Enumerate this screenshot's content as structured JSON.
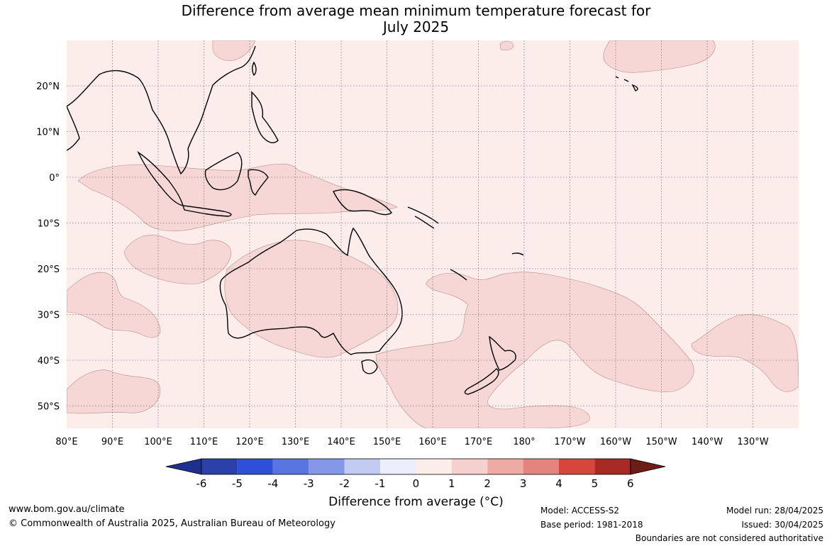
{
  "title_line1": "Difference from average mean minimum temperature forecast for",
  "title_line2": "July 2025",
  "lat_labels": [
    "20°N",
    "10°N",
    "0°",
    "10°S",
    "20°S",
    "30°S",
    "40°S",
    "50°S"
  ],
  "lon_labels": [
    "80°E",
    "90°E",
    "100°E",
    "110°E",
    "120°E",
    "130°E",
    "140°E",
    "150°E",
    "160°E",
    "170°E",
    "180°",
    "170°W",
    "160°W",
    "150°W",
    "140°W",
    "130°W"
  ],
  "colorbar": {
    "title": "Difference from average (°C)",
    "ticks": [
      "-6",
      "-5",
      "-4",
      "-3",
      "-2",
      "-1",
      "0",
      "1",
      "2",
      "3",
      "4",
      "5",
      "6"
    ],
    "colors": [
      "#1e2f8f",
      "#2b3fa8",
      "#2f4fd9",
      "#5a74e0",
      "#8497e8",
      "#c3cbf3",
      "#eceefb",
      "#fcecea",
      "#f6d0cf",
      "#eeaaa5",
      "#e5847e",
      "#d7463c",
      "#a82a25",
      "#6e1c16"
    ]
  },
  "field_colors": {
    "base": "#fcecea",
    "anomaly_1_2": "#f6d7d6",
    "contour": "#b48f8f"
  },
  "footer": {
    "website": "www.bom.gov.au/climate",
    "copyright": "© Commonwealth of Australia 2025, Australian Bureau of Meteorology",
    "model": "Model: ACCESS-S2",
    "base_period": "Base period: 1981-2018",
    "model_run": "Model run: 28/04/2025",
    "issued": "Issued: 30/04/2025",
    "disclaimer": "Boundaries are not considered authoritative"
  }
}
